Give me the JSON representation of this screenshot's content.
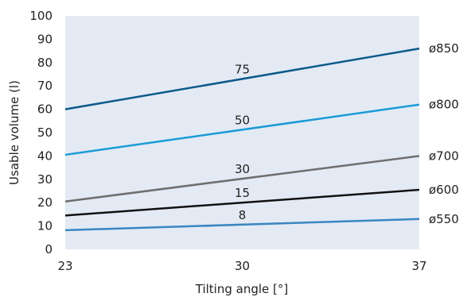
{
  "chart_data": {
    "type": "line",
    "title": "",
    "xlabel": "Tilting angle [°]",
    "ylabel": "Usable volume (l)",
    "x": [
      23,
      37
    ],
    "xticks": [
      "23",
      "30",
      "37"
    ],
    "yticks": [
      "0",
      "10",
      "20",
      "30",
      "40",
      "50",
      "60",
      "70",
      "80",
      "90",
      "100"
    ],
    "xlim": [
      23,
      37
    ],
    "ylim": [
      0,
      100
    ],
    "grid": false,
    "plot_background": "#e3eaf4",
    "series": [
      {
        "name": "75",
        "diameter": "ø850",
        "values": [
          60,
          86
        ],
        "color": "#0d5a8a"
      },
      {
        "name": "50",
        "diameter": "ø800",
        "values": [
          40.5,
          62
        ],
        "color": "#1a9ad6"
      },
      {
        "name": "30",
        "diameter": "ø700",
        "values": [
          20.5,
          40
        ],
        "color": "#6e6e6e"
      },
      {
        "name": "15",
        "diameter": "ø600",
        "values": [
          14.5,
          25.5
        ],
        "color": "#111111"
      },
      {
        "name": "8",
        "diameter": "ø550",
        "values": [
          8.2,
          13
        ],
        "color": "#3a86c0"
      }
    ]
  }
}
